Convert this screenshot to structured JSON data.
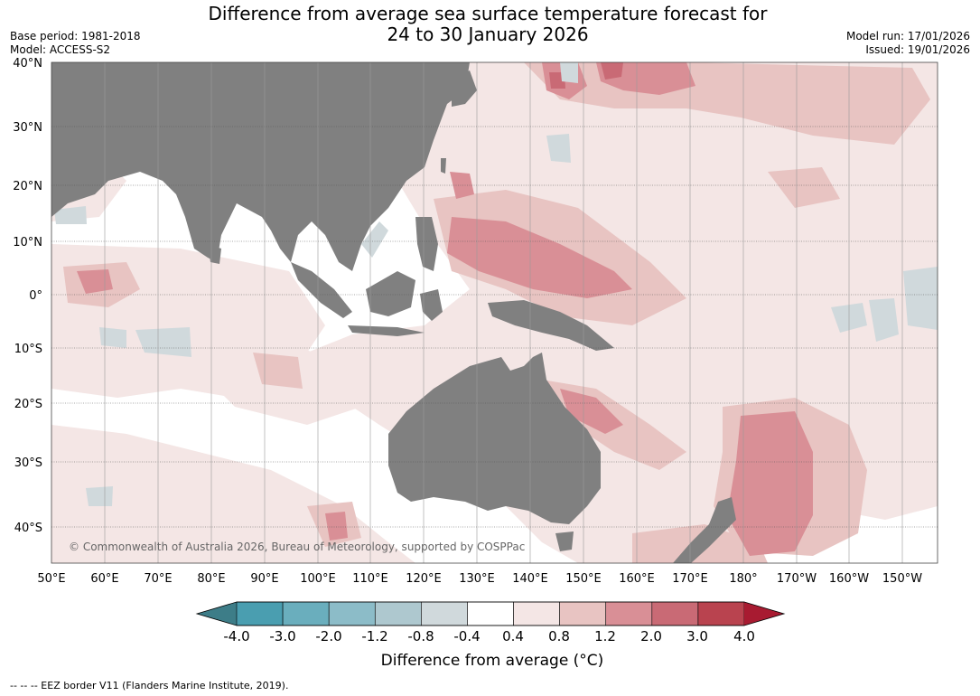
{
  "title_line1": "Difference from average sea surface temperature forecast for",
  "title_line2": "24 to 30 January 2026",
  "base_period": "Base period: 1981-2018",
  "model": "Model: ACCESS-S2",
  "model_run": "Model run: 17/01/2026",
  "issued": "Issued: 19/01/2026",
  "lat_labels": [
    "40°N",
    "30°N",
    "20°N",
    "10°N",
    "0°",
    "10°S",
    "20°S",
    "30°S",
    "40°S"
  ],
  "lon_labels": [
    "50°E",
    "60°E",
    "70°E",
    "80°E",
    "90°E",
    "100°E",
    "110°E",
    "120°E",
    "130°E",
    "140°E",
    "150°E",
    "160°E",
    "170°E",
    "180°",
    "170°W",
    "160°W",
    "150°W"
  ],
  "copyright": "© Commonwealth of Australia 2026, Bureau of Meteorology, supported by COSPPac",
  "colorbar": {
    "title": "Difference from average (°C)",
    "tick_labels": [
      "-4.0",
      "-3.0",
      "-2.0",
      "-1.2",
      "-0.8",
      "-0.4",
      "0.4",
      "0.8",
      "1.2",
      "2.0",
      "3.0",
      "4.0"
    ],
    "colors": [
      "#4a9eb0",
      "#6aaebd",
      "#8cbcc8",
      "#aec8cf",
      "#d0d9dc",
      "#ffffff",
      "#f4e6e5",
      "#e8c4c2",
      "#d98f96",
      "#c96a75",
      "#b9434f"
    ],
    "under_color": "#3d7d88",
    "over_color": "#a81b31"
  },
  "land_color": "#808080",
  "footnote": "--  --  -- EEZ border V11 (Flanders Marine Institute, 2019)."
}
